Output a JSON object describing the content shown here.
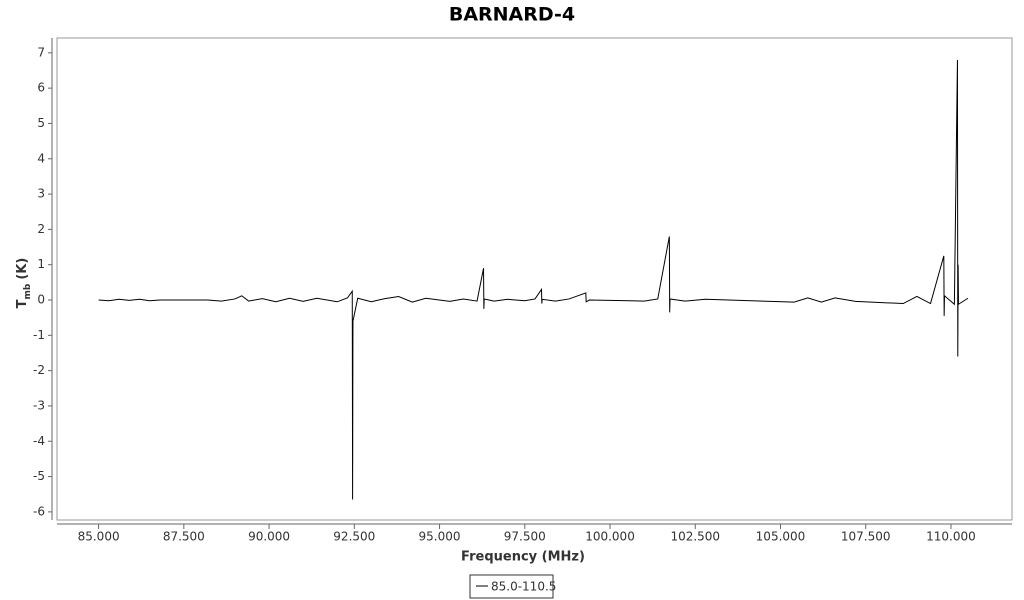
{
  "chart_data": {
    "type": "line",
    "title": "BARNARD-4",
    "xlabel": "Frequency (MHz)",
    "ylabel": {
      "main": "T",
      "sub": "mb",
      "unit": "(K)"
    },
    "xlim": [
      83.78,
      111.79
    ],
    "ylim": [
      -6.23,
      7.42
    ],
    "xticks": [
      {
        "value": 85,
        "label": "85.000"
      },
      {
        "value": 87.5,
        "label": "87.500"
      },
      {
        "value": 90,
        "label": "90.000"
      },
      {
        "value": 92.5,
        "label": "92.500"
      },
      {
        "value": 95,
        "label": "95.000"
      },
      {
        "value": 97.5,
        "label": "97.500"
      },
      {
        "value": 100,
        "label": "100.000"
      },
      {
        "value": 102.5,
        "label": "102.500"
      },
      {
        "value": 105,
        "label": "105.000"
      },
      {
        "value": 107.5,
        "label": "107.500"
      },
      {
        "value": 110,
        "label": "110.000"
      }
    ],
    "yticks": [
      -6,
      -5,
      -4,
      -3,
      -2,
      -1,
      0,
      1,
      2,
      3,
      4,
      5,
      6,
      7
    ],
    "grid": false,
    "legend": "bottom",
    "x": [
      85.0,
      85.3,
      85.6,
      85.9,
      86.2,
      86.5,
      86.8,
      88.2,
      88.6,
      89.0,
      89.2,
      89.4,
      89.8,
      90.2,
      90.6,
      91.0,
      91.4,
      92.0,
      92.3,
      92.44,
      92.45,
      92.46,
      92.6,
      93.0,
      93.4,
      93.8,
      94.2,
      94.6,
      95.3,
      95.7,
      96.1,
      96.29,
      96.3,
      96.31,
      96.6,
      97.0,
      97.5,
      97.8,
      97.99,
      98.0,
      98.01,
      98.4,
      98.8,
      99.29,
      99.3,
      99.4,
      101.0,
      101.4,
      101.74,
      101.75,
      101.76,
      102.2,
      102.8,
      105.4,
      105.8,
      106.2,
      106.6,
      107.2,
      108.6,
      109.0,
      109.4,
      109.79,
      109.8,
      109.81,
      110.1,
      110.19,
      110.2,
      110.21,
      110.22,
      110.5
    ],
    "series": [
      {
        "name": "85.0-110.5",
        "color": "#000000",
        "values": [
          0.0,
          -0.02,
          0.02,
          -0.01,
          0.02,
          -0.02,
          0.0,
          0.0,
          -0.03,
          0.03,
          0.12,
          -0.03,
          0.04,
          -0.05,
          0.05,
          -0.04,
          0.05,
          -0.05,
          0.06,
          0.25,
          -5.65,
          -0.6,
          0.05,
          -0.05,
          0.04,
          0.1,
          -0.06,
          0.05,
          -0.04,
          0.03,
          -0.03,
          0.9,
          -0.25,
          0.03,
          -0.03,
          0.02,
          -0.02,
          0.03,
          0.3,
          -0.1,
          0.02,
          -0.03,
          0.03,
          0.2,
          -0.05,
          0.0,
          -0.03,
          0.03,
          1.8,
          -0.35,
          0.03,
          -0.03,
          0.02,
          -0.06,
          0.06,
          -0.06,
          0.06,
          -0.04,
          -0.1,
          0.1,
          -0.1,
          1.25,
          -0.45,
          0.12,
          -0.12,
          6.8,
          -1.6,
          1.0,
          -0.12,
          0.05
        ]
      }
    ]
  }
}
